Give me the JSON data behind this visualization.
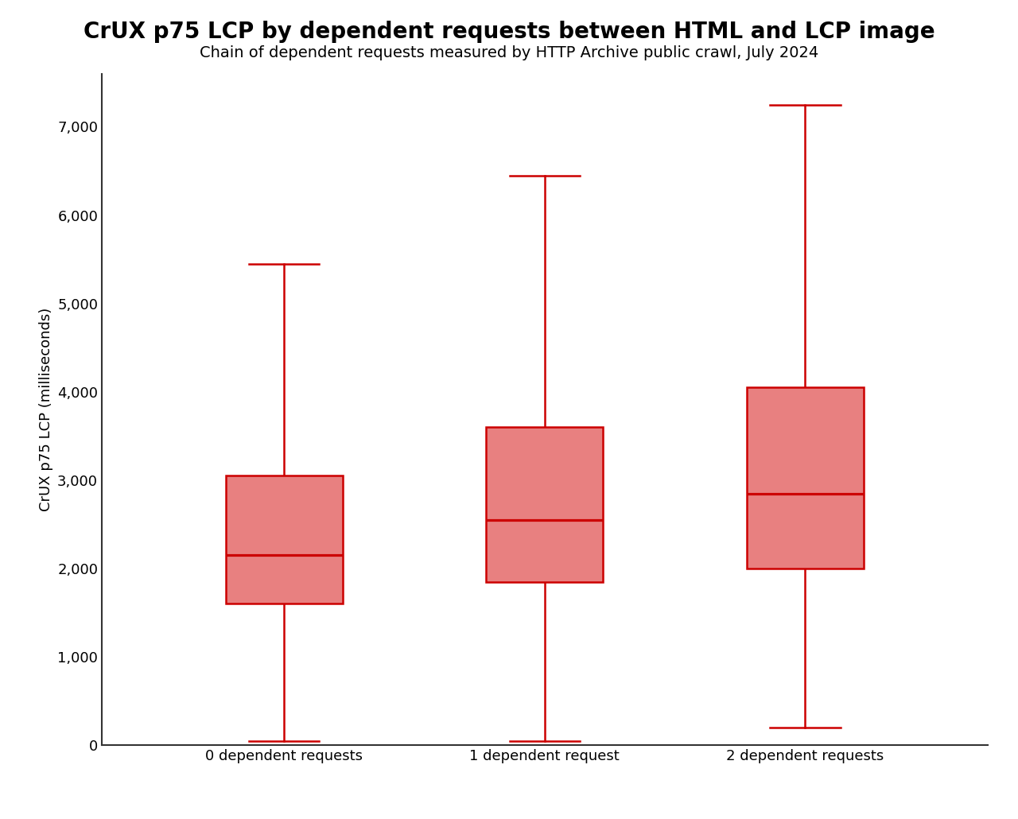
{
  "title": "CrUX p75 LCP by dependent requests between HTML and LCP image",
  "subtitle": "Chain of dependent requests measured by HTTP Archive public crawl, July 2024",
  "ylabel": "CrUX p75 LCP (milliseconds)",
  "xlabel": "",
  "categories": [
    "0 dependent requests",
    "1 dependent request",
    "2 dependent requests"
  ],
  "boxes": [
    {
      "whisker_low": 50,
      "q1": 1600,
      "median": 2150,
      "q3": 3050,
      "whisker_high": 5450
    },
    {
      "whisker_low": 50,
      "q1": 1850,
      "median": 2550,
      "q3": 3600,
      "whisker_high": 6450
    },
    {
      "whisker_low": 200,
      "q1": 2000,
      "median": 2850,
      "q3": 4050,
      "whisker_high": 7250
    }
  ],
  "box_color": "#e88080",
  "box_edge_color": "#cc0000",
  "median_color": "#cc0000",
  "whisker_color": "#cc0000",
  "cap_color": "#cc0000",
  "ylim": [
    0,
    7600
  ],
  "yticks": [
    0,
    1000,
    2000,
    3000,
    4000,
    5000,
    6000,
    7000
  ],
  "title_fontsize": 20,
  "subtitle_fontsize": 14,
  "ylabel_fontsize": 13,
  "tick_fontsize": 13,
  "box_width": 0.45,
  "line_width": 1.8,
  "background_color": "#ffffff"
}
